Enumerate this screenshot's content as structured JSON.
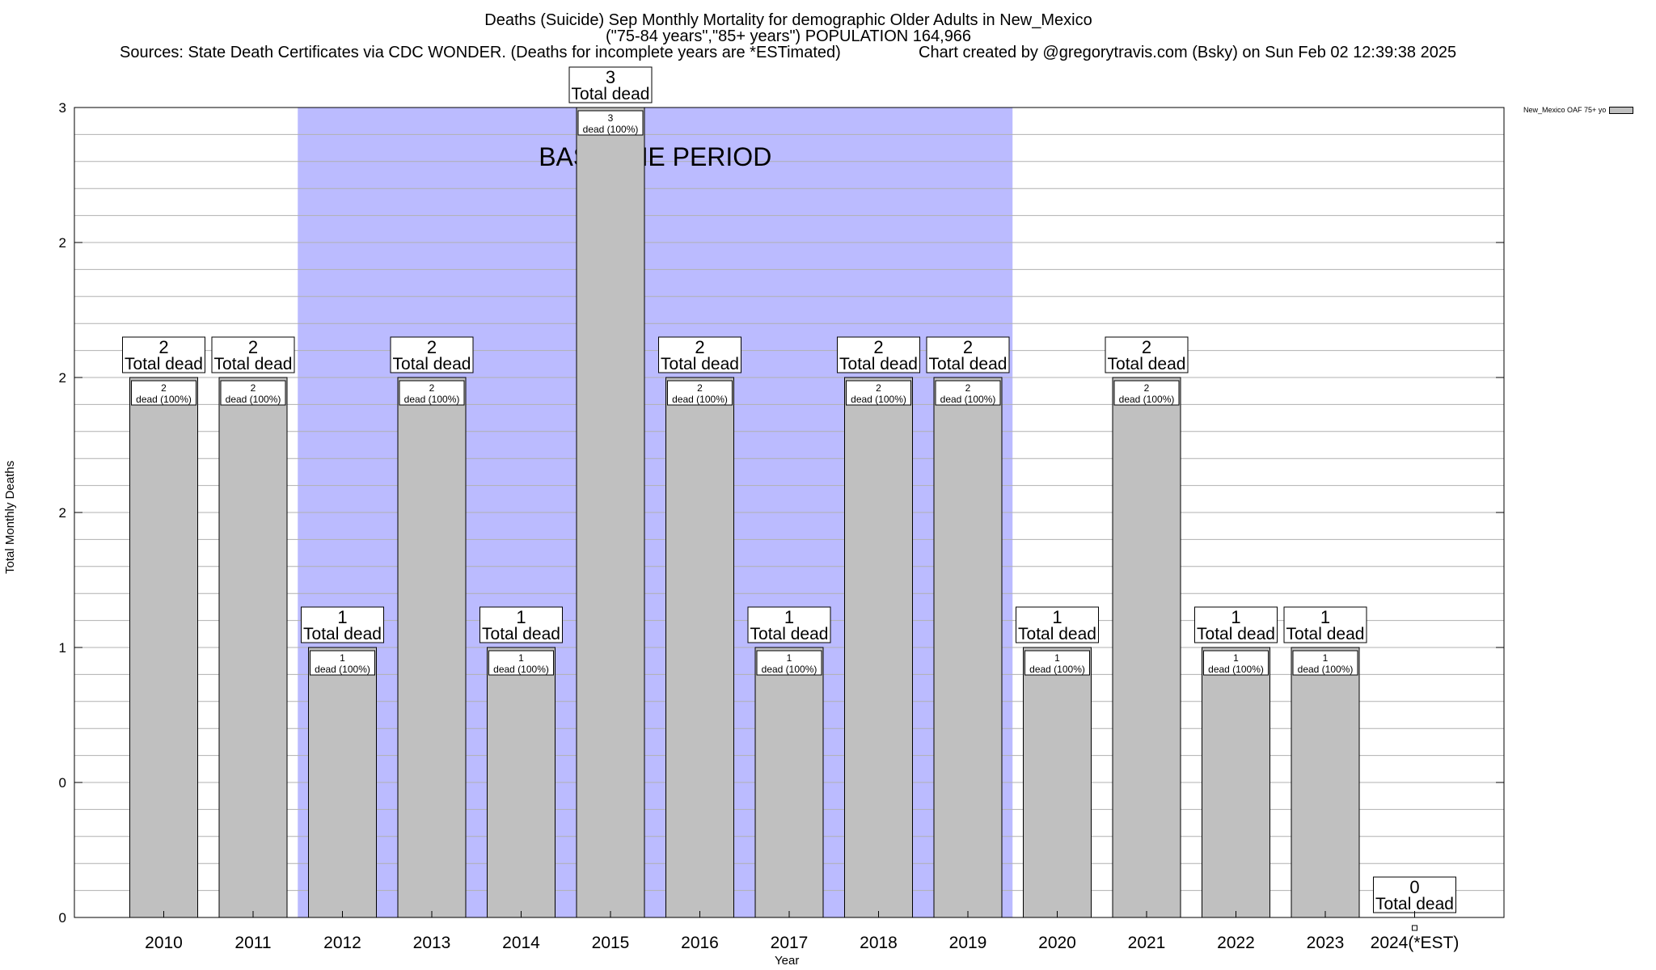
{
  "chart_data": {
    "type": "bar",
    "title": "Deaths (Suicide) Sep Monthly Mortality for demographic Older Adults in New_Mexico",
    "subtitle": "(\"75-84 years\",\"85+ years\") POPULATION 164,966",
    "sources": "Sources: State Death Certificates via CDC WONDER. (Deaths for incomplete years are *ESTimated)",
    "credit": "Chart created by @gregorytravis.com (Bsky) on Sun Feb 02 12:39:38 2025",
    "xlabel": "Year",
    "ylabel": "Total Monthly Deaths",
    "categories": [
      "2010",
      "2011",
      "2012",
      "2013",
      "2014",
      "2015",
      "2016",
      "2017",
      "2018",
      "2019",
      "2020",
      "2021",
      "2022",
      "2023",
      "2024(*EST)"
    ],
    "series": [
      {
        "name": "New_Mexico OAF 75+ yo",
        "values": [
          2,
          2,
          1,
          2,
          1,
          3,
          2,
          1,
          2,
          2,
          1,
          2,
          1,
          1,
          0
        ]
      }
    ],
    "ylim": [
      0,
      3
    ],
    "y_ticks": [
      0,
      0.5,
      1,
      1.5,
      2,
      2.5,
      3
    ],
    "y_tick_labels": [
      "0",
      "0",
      "1",
      "2",
      "2",
      "2",
      "3"
    ],
    "total_label_text": "Total dead",
    "inner_label_text": "dead (100%)",
    "inner_label_percent": "100%",
    "baseline": {
      "label": "BASELINE PERIOD",
      "start": "2012",
      "end": "2019",
      "color": "#bbbbff"
    },
    "bar_color": "#c0c0c0",
    "grid": true,
    "legend_position": "top-right"
  }
}
